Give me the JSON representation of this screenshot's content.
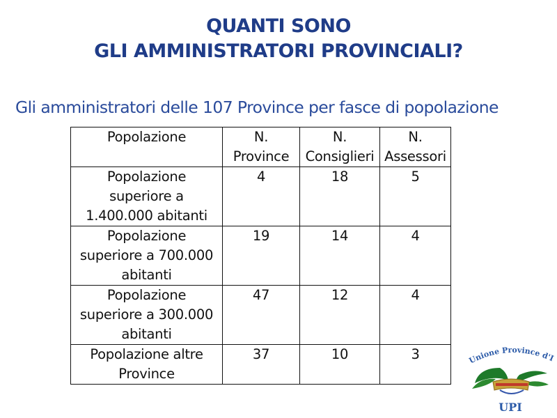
{
  "title": "QUANTI SONO\nGLI AMMINISTRATORI PROVINCIALI?",
  "subtitle": "Gli amministratori delle 107 Province per fasce di popolazione",
  "table": {
    "headers": [
      "Popolazione",
      "N.\nProvince",
      "N.\nConsiglieri",
      "N.\nAssessori"
    ],
    "rows": [
      [
        "Popolazione\nsuperiore a\n1.400.000 abitanti",
        "4",
        "18",
        "5"
      ],
      [
        "Popolazione\nsuperiore a 700.000\nabitanti",
        "19",
        "14",
        "4"
      ],
      [
        "Popolazione\nsuperiore  a 300.000\nabitanti",
        "47",
        "12",
        "4"
      ],
      [
        "Popolazione altre\nProvince",
        "37",
        "10",
        "3"
      ]
    ]
  },
  "logo": {
    "arc_text": "Unione Province d'Italia",
    "acronym": "UPI"
  },
  "colors": {
    "title": "#1f3c88",
    "subtitle": "#2a4b9b",
    "logo_text": "#2b5aa8",
    "leaves": "#1e7a2a",
    "crown": "#c8a23a"
  }
}
